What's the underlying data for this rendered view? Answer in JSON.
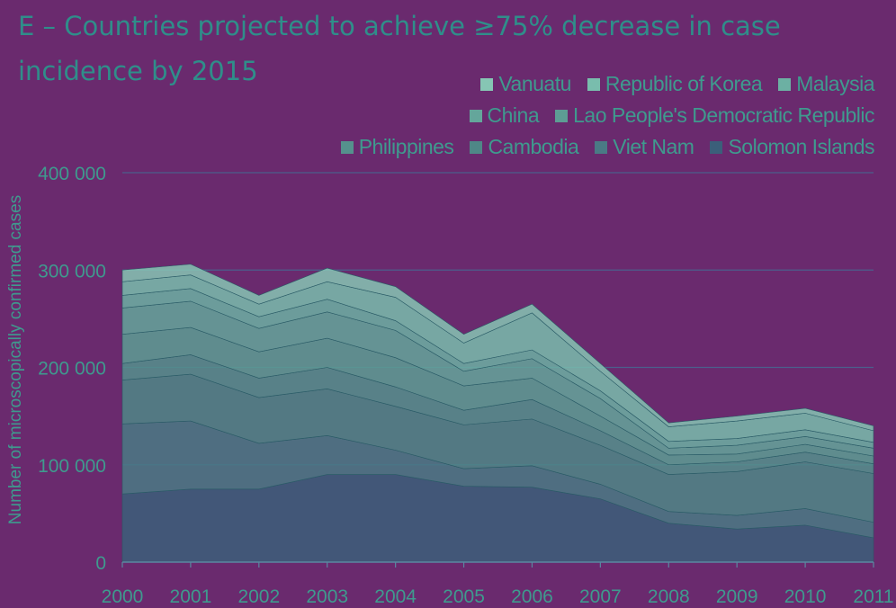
{
  "chart_data": {
    "type": "area",
    "stacked": true,
    "title": "E – Countries projected to achieve ≥75% decrease in case incidence by 2015",
    "xlabel": "",
    "ylabel": "Number of microscopically confirmed cases",
    "x": [
      "2000",
      "2001",
      "2002",
      "2003",
      "2004",
      "2005",
      "2006",
      "2007",
      "2008",
      "2009",
      "2010",
      "2011"
    ],
    "ylim": [
      0,
      400000
    ],
    "yticks": [
      0,
      100000,
      200000,
      300000,
      400000
    ],
    "ytick_labels": [
      "0",
      "100 000",
      "200 000",
      "300 000",
      "400 000"
    ],
    "grid": true,
    "legend_position": "top-right",
    "legend_order": [
      "Vanuatu",
      "Republic of Korea",
      "Malaysia",
      "China",
      "Lao People's Democratic Republic",
      "Philippines",
      "Cambodia",
      "Viet Nam",
      "Solomon Islands"
    ],
    "series": [
      {
        "name": "Solomon Islands",
        "color": "#3b5f7a",
        "values": [
          70000,
          75000,
          75000,
          90000,
          90000,
          78000,
          77000,
          65000,
          40000,
          34000,
          38000,
          25000
        ]
      },
      {
        "name": "Viet Nam",
        "color": "#4a7a85",
        "values": [
          72000,
          70000,
          47000,
          40000,
          25000,
          18000,
          22000,
          15000,
          12000,
          14000,
          17000,
          16000
        ]
      },
      {
        "name": "Cambodia",
        "color": "#4f8787",
        "values": [
          45000,
          48000,
          47000,
          48000,
          45000,
          45000,
          48000,
          40000,
          38000,
          45000,
          48000,
          50000
        ]
      },
      {
        "name": "Philippines",
        "color": "#55918d",
        "values": [
          17000,
          20000,
          20000,
          22000,
          20000,
          15000,
          20000,
          15000,
          10000,
          10000,
          10000,
          10000
        ]
      },
      {
        "name": "Lao People's Democratic Republic",
        "color": "#5d9d94",
        "values": [
          30000,
          28000,
          27000,
          30000,
          30000,
          25000,
          22000,
          15000,
          10000,
          8000,
          8000,
          8000
        ]
      },
      {
        "name": "China",
        "color": "#64a69b",
        "values": [
          27000,
          27000,
          24000,
          27000,
          28000,
          15000,
          20000,
          18000,
          7000,
          9000,
          8000,
          8000
        ]
      },
      {
        "name": "Malaysia",
        "color": "#6cb0a3",
        "values": [
          13000,
          13000,
          12000,
          13000,
          10000,
          8000,
          9000,
          8000,
          7000,
          7000,
          7000,
          6000
        ]
      },
      {
        "name": "Republic of Korea",
        "color": "#79bdad",
        "values": [
          14000,
          14000,
          13000,
          18000,
          24000,
          21000,
          38000,
          20000,
          15000,
          18000,
          17000,
          12000
        ]
      },
      {
        "name": "Vanuatu",
        "color": "#86c6b4",
        "values": [
          12000,
          11000,
          9000,
          14000,
          11000,
          9000,
          9000,
          8000,
          4000,
          5000,
          5000,
          5000
        ]
      }
    ]
  }
}
